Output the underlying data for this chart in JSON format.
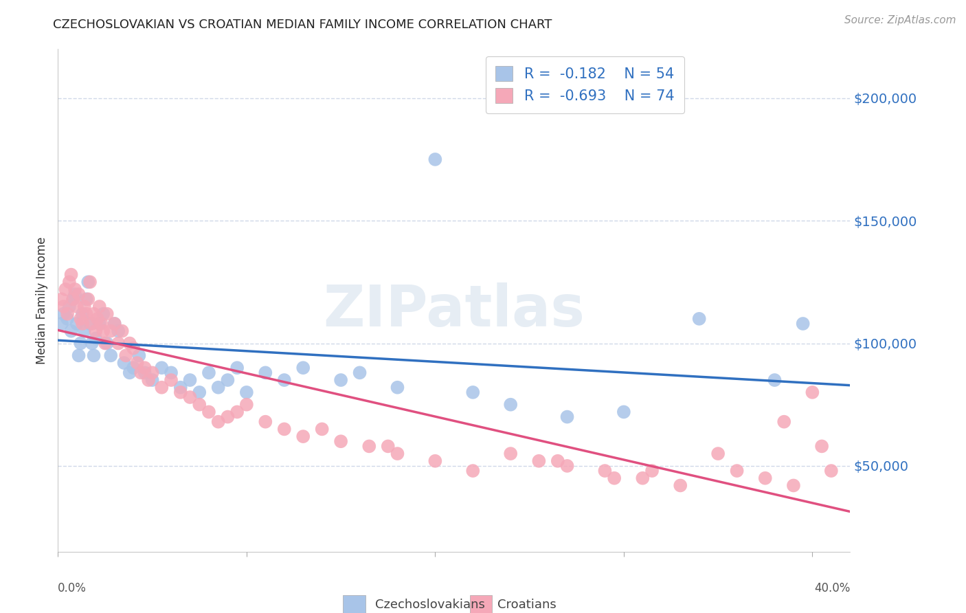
{
  "title": "CZECHOSLOVAKIAN VS CROATIAN MEDIAN FAMILY INCOME CORRELATION CHART",
  "source": "Source: ZipAtlas.com",
  "ylabel": "Median Family Income",
  "yticks": [
    50000,
    100000,
    150000,
    200000
  ],
  "ytick_labels": [
    "$50,000",
    "$100,000",
    "$150,000",
    "$200,000"
  ],
  "xlim": [
    0.0,
    0.42
  ],
  "ylim": [
    15000,
    220000
  ],
  "czech_color": "#a8c4e8",
  "croatian_color": "#f5a8b8",
  "czech_line_color": "#3070c0",
  "croatian_line_color": "#e05080",
  "legend_text_color": "#3070c0",
  "background_color": "#ffffff",
  "watermark": "ZIPatlas",
  "legend_R_czech": "R = -0.182",
  "legend_N_czech": "N = 54",
  "legend_R_croatian": "R = -0.693",
  "legend_N_croatian": "N = 74",
  "grid_color": "#d0d8e8",
  "tick_color": "#3070c0",
  "czech_scatter_x": [
    0.002,
    0.003,
    0.005,
    0.006,
    0.007,
    0.008,
    0.009,
    0.01,
    0.011,
    0.012,
    0.013,
    0.014,
    0.015,
    0.016,
    0.017,
    0.018,
    0.019,
    0.02,
    0.022,
    0.024,
    0.026,
    0.028,
    0.03,
    0.032,
    0.035,
    0.038,
    0.04,
    0.043,
    0.046,
    0.05,
    0.055,
    0.06,
    0.065,
    0.07,
    0.075,
    0.08,
    0.085,
    0.09,
    0.095,
    0.1,
    0.11,
    0.12,
    0.13,
    0.15,
    0.16,
    0.18,
    0.2,
    0.22,
    0.24,
    0.27,
    0.3,
    0.34,
    0.38,
    0.395
  ],
  "czech_scatter_y": [
    108000,
    112000,
    110000,
    115000,
    105000,
    118000,
    120000,
    108000,
    95000,
    100000,
    112000,
    105000,
    118000,
    125000,
    108000,
    100000,
    95000,
    102000,
    108000,
    112000,
    100000,
    95000,
    108000,
    105000,
    92000,
    88000,
    90000,
    95000,
    88000,
    85000,
    90000,
    88000,
    82000,
    85000,
    80000,
    88000,
    82000,
    85000,
    90000,
    80000,
    88000,
    85000,
    90000,
    85000,
    88000,
    82000,
    175000,
    80000,
    75000,
    70000,
    72000,
    110000,
    85000,
    108000
  ],
  "croatian_scatter_x": [
    0.002,
    0.003,
    0.004,
    0.005,
    0.006,
    0.007,
    0.008,
    0.009,
    0.01,
    0.011,
    0.012,
    0.013,
    0.014,
    0.015,
    0.016,
    0.017,
    0.018,
    0.019,
    0.02,
    0.021,
    0.022,
    0.023,
    0.024,
    0.025,
    0.026,
    0.028,
    0.03,
    0.032,
    0.034,
    0.036,
    0.038,
    0.04,
    0.042,
    0.044,
    0.046,
    0.048,
    0.05,
    0.055,
    0.06,
    0.065,
    0.07,
    0.075,
    0.08,
    0.085,
    0.09,
    0.095,
    0.1,
    0.11,
    0.12,
    0.13,
    0.14,
    0.15,
    0.165,
    0.18,
    0.2,
    0.22,
    0.24,
    0.265,
    0.29,
    0.31,
    0.33,
    0.35,
    0.36,
    0.375,
    0.39,
    0.4,
    0.405,
    0.41,
    0.27,
    0.295,
    0.315,
    0.255,
    0.385,
    0.175
  ],
  "croatian_scatter_y": [
    118000,
    115000,
    122000,
    112000,
    125000,
    128000,
    118000,
    122000,
    115000,
    120000,
    110000,
    108000,
    115000,
    112000,
    118000,
    125000,
    108000,
    112000,
    105000,
    110000,
    115000,
    108000,
    105000,
    100000,
    112000,
    105000,
    108000,
    100000,
    105000,
    95000,
    100000,
    98000,
    92000,
    88000,
    90000,
    85000,
    88000,
    82000,
    85000,
    80000,
    78000,
    75000,
    72000,
    68000,
    70000,
    72000,
    75000,
    68000,
    65000,
    62000,
    65000,
    60000,
    58000,
    55000,
    52000,
    48000,
    55000,
    52000,
    48000,
    45000,
    42000,
    55000,
    48000,
    45000,
    42000,
    80000,
    58000,
    48000,
    50000,
    45000,
    48000,
    52000,
    68000,
    58000
  ]
}
